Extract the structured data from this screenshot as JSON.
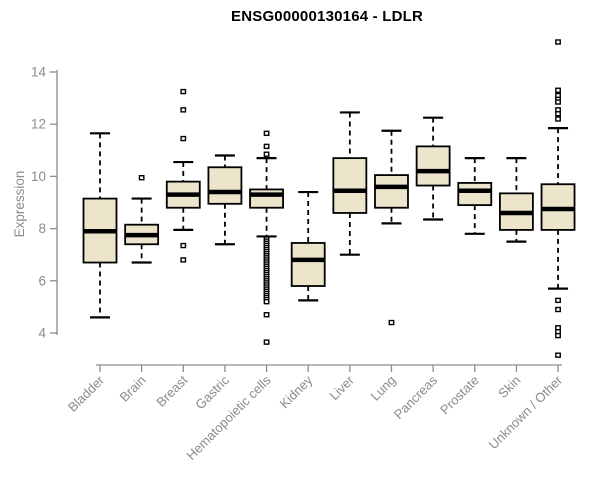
{
  "chart": {
    "title": "ENSG00000130164 - LDLR"
  },
  "chart_data": {
    "type": "boxplot",
    "title": "ENSG00000130164 - LDLR",
    "xlabel": "",
    "ylabel": "Expression",
    "ylim": [
      2.8,
      15.4
    ],
    "yticks": [
      4,
      6,
      8,
      10,
      12,
      14
    ],
    "grid": false,
    "legend": "none",
    "categories": [
      "Bladder",
      "Brain",
      "Breast",
      "Gastric",
      "Hematopoietic cells",
      "Kidney",
      "Liver",
      "Lung",
      "Pancreas",
      "Prostate",
      "Skin",
      "Unknown / Other"
    ],
    "boxes": [
      {
        "category": "Bladder",
        "low": 4.6,
        "q1": 6.7,
        "median": 7.9,
        "q3": 9.15,
        "high": 11.65,
        "outliers": []
      },
      {
        "category": "Brain",
        "low": 6.7,
        "q1": 7.4,
        "median": 7.75,
        "q3": 8.15,
        "high": 9.15,
        "outliers": [
          9.95
        ]
      },
      {
        "category": "Breast",
        "low": 7.95,
        "q1": 8.8,
        "median": 9.3,
        "q3": 9.8,
        "high": 10.55,
        "outliers": [
          13.25,
          12.55,
          11.45,
          7.35,
          6.8
        ]
      },
      {
        "category": "Gastric",
        "low": 7.4,
        "q1": 8.95,
        "median": 9.4,
        "q3": 10.35,
        "high": 10.8,
        "outliers": []
      },
      {
        "category": "Hematopoietic cells",
        "low": 7.7,
        "q1": 8.8,
        "median": 9.3,
        "q3": 9.5,
        "high": 10.7,
        "outliers": [
          11.65,
          11.15,
          10.85,
          7.6,
          7.52,
          7.44,
          7.36,
          7.28,
          7.2,
          7.12,
          7.04,
          6.96,
          6.88,
          6.8,
          6.72,
          6.64,
          6.56,
          6.48,
          6.4,
          6.32,
          6.24,
          6.16,
          6.08,
          6.0,
          5.92,
          5.84,
          5.76,
          5.68,
          5.6,
          5.52,
          5.44,
          5.36,
          5.28,
          5.2,
          4.7,
          3.65
        ]
      },
      {
        "category": "Kidney",
        "low": 5.25,
        "q1": 5.8,
        "median": 6.8,
        "q3": 7.45,
        "high": 9.4,
        "outliers": []
      },
      {
        "category": "Liver",
        "low": 7.0,
        "q1": 8.6,
        "median": 9.45,
        "q3": 10.7,
        "high": 12.45,
        "outliers": []
      },
      {
        "category": "Lung",
        "low": 8.2,
        "q1": 8.8,
        "median": 9.6,
        "q3": 10.05,
        "high": 11.75,
        "outliers": [
          4.4
        ]
      },
      {
        "category": "Pancreas",
        "low": 8.35,
        "q1": 9.65,
        "median": 10.2,
        "q3": 11.15,
        "high": 12.25,
        "outliers": []
      },
      {
        "category": "Prostate",
        "low": 7.8,
        "q1": 8.9,
        "median": 9.45,
        "q3": 9.75,
        "high": 10.7,
        "outliers": []
      },
      {
        "category": "Skin",
        "low": 7.5,
        "q1": 7.95,
        "median": 8.6,
        "q3": 9.35,
        "high": 10.7,
        "outliers": []
      },
      {
        "category": "Unknown / Other",
        "low": 5.7,
        "q1": 7.95,
        "median": 8.75,
        "q3": 9.7,
        "high": 11.85,
        "outliers": [
          15.15,
          13.3,
          13.1,
          12.95,
          12.85,
          12.55,
          12.4,
          12.2,
          5.25,
          4.9,
          4.2,
          4.05,
          3.9,
          3.15
        ]
      }
    ],
    "style": {
      "box_fill": "#ece5cb",
      "box_border": "#000000",
      "median_color": "#000000",
      "whisker_color": "#000000",
      "outlier_fill": "#ffffff",
      "axis_color": "#8b8b8b",
      "tick_label_color": "#8b8b8b",
      "title_color": "#000000",
      "background": "#ffffff"
    }
  }
}
